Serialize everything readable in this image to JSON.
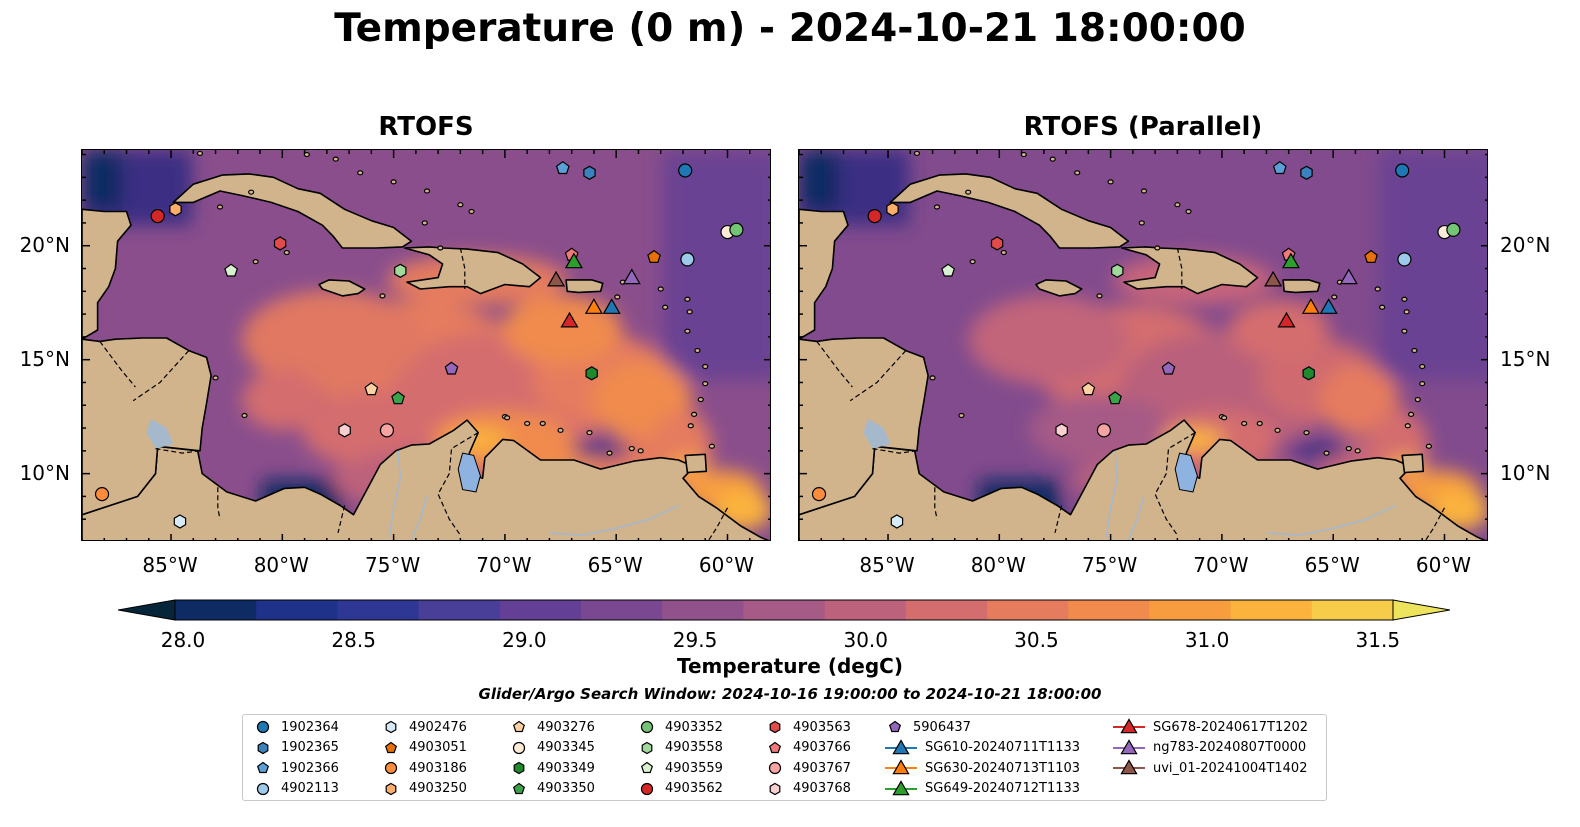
{
  "title": "Temperature (0 m) - 2024-10-21 18:00:00",
  "panels": [
    {
      "title": "RTOFS",
      "id": "left"
    },
    {
      "title": "RTOFS (Parallel)",
      "id": "right"
    }
  ],
  "axes": {
    "lon_ticks": [
      "85°W",
      "80°W",
      "75°W",
      "70°W",
      "65°W",
      "60°W"
    ],
    "lat_ticks": [
      "20°N",
      "15°N",
      "10°N"
    ],
    "lon_range": [
      -89,
      -58
    ],
    "lat_range": [
      7,
      24.2
    ]
  },
  "colorbar": {
    "label": "Temperature (degC)",
    "min": 28.0,
    "max": 31.5,
    "ticks": [
      "28.0",
      "28.5",
      "29.0",
      "29.5",
      "30.0",
      "30.5",
      "31.0",
      "31.5"
    ],
    "colors": [
      "#062538",
      "#0e2b63",
      "#1e3289",
      "#2f3794",
      "#4a3f98",
      "#633f96",
      "#7a4890",
      "#91528b",
      "#a65a86",
      "#bd627c",
      "#d46d6e",
      "#e57c5e",
      "#f08b4d",
      "#f79d40",
      "#fbb33d",
      "#f7cc4a",
      "#eee35d"
    ]
  },
  "search_window": "Glider/Argo Search Window: 2024-10-16 19:00:00 to 2024-10-21 18:00:00",
  "colors": {
    "land": "#d2b48c",
    "lake": "#8fb3e0",
    "river": "#a5b8cc",
    "ocean_base": "#8a4e8c",
    "warm": "#e9875a",
    "cool": "#3b2d82"
  },
  "legend": [
    {
      "label": "1902364",
      "marker": "circle",
      "color": "#1f77b4"
    },
    {
      "label": "1902365",
      "marker": "hexagon",
      "color": "#3a82bb"
    },
    {
      "label": "1902366",
      "marker": "pentagon",
      "color": "#5a9fd6"
    },
    {
      "label": "4902113",
      "marker": "circle",
      "color": "#9ecae9"
    },
    {
      "label": "4902476",
      "marker": "hexagon",
      "color": "#d6ebf7"
    },
    {
      "label": "4903051",
      "marker": "pentagon",
      "color": "#e6700a"
    },
    {
      "label": "4903186",
      "marker": "circle",
      "color": "#fd8d3c"
    },
    {
      "label": "4903250",
      "marker": "hexagon",
      "color": "#fdae6b"
    },
    {
      "label": "4903276",
      "marker": "pentagon",
      "color": "#fdd0a2"
    },
    {
      "label": "4903345",
      "marker": "circle",
      "color": "#feebd6"
    },
    {
      "label": "4903349",
      "marker": "hexagon",
      "color": "#1e8a2c"
    },
    {
      "label": "4903350",
      "marker": "pentagon",
      "color": "#3aa34a"
    },
    {
      "label": "4903352",
      "marker": "circle",
      "color": "#74c476"
    },
    {
      "label": "4903558",
      "marker": "hexagon",
      "color": "#a1d99b"
    },
    {
      "label": "4903559",
      "marker": "pentagon",
      "color": "#d8f2d1"
    },
    {
      "label": "4903562",
      "marker": "circle",
      "color": "#d62728"
    },
    {
      "label": "4903563",
      "marker": "hexagon",
      "color": "#e34a4a"
    },
    {
      "label": "4903766",
      "marker": "pentagon",
      "color": "#f07a7a"
    },
    {
      "label": "4903767",
      "marker": "circle",
      "color": "#f5a3a3"
    },
    {
      "label": "4903768",
      "marker": "hexagon",
      "color": "#fbd0d0"
    },
    {
      "label": "5906437",
      "marker": "pentagon",
      "color": "#9467bd"
    },
    {
      "label": "SG610-20240711T1133",
      "marker": "triangle-line",
      "color": "#1f77b4"
    },
    {
      "label": "SG630-20240713T1103",
      "marker": "triangle-line",
      "color": "#ff7f0e"
    },
    {
      "label": "SG649-20240712T1133",
      "marker": "triangle-line",
      "color": "#2ca02c"
    },
    {
      "label": "SG678-20240617T1202",
      "marker": "triangle-line",
      "color": "#d62728"
    },
    {
      "label": "ng783-20240807T0000",
      "marker": "triangle-line",
      "color": "#9467bd"
    },
    {
      "label": "uvi_01-20241004T1402",
      "marker": "triangle-line",
      "color": "#8c564b"
    }
  ],
  "points": [
    {
      "label": "1902364",
      "lon": -61.9,
      "lat": 23.3
    },
    {
      "label": "1902365",
      "lon": -66.2,
      "lat": 23.2
    },
    {
      "label": "1902366",
      "lon": -67.4,
      "lat": 23.4
    },
    {
      "label": "4902113",
      "lon": -61.8,
      "lat": 19.4
    },
    {
      "label": "4902476",
      "lon": -84.6,
      "lat": 7.9
    },
    {
      "label": "4903051",
      "lon": -63.3,
      "lat": 19.5
    },
    {
      "label": "4903186",
      "lon": -88.1,
      "lat": 9.1
    },
    {
      "label": "4903250",
      "lon": -84.8,
      "lat": 21.6
    },
    {
      "label": "4903276",
      "lon": -76.0,
      "lat": 13.7
    },
    {
      "label": "4903345",
      "lon": -60.0,
      "lat": 20.6
    },
    {
      "label": "4903349",
      "lon": -66.1,
      "lat": 14.4
    },
    {
      "label": "4903350",
      "lon": -74.8,
      "lat": 13.3
    },
    {
      "label": "4903352",
      "lon": -59.6,
      "lat": 20.7
    },
    {
      "label": "4903558",
      "lon": -74.7,
      "lat": 18.9
    },
    {
      "label": "4903559",
      "lon": -82.3,
      "lat": 18.9
    },
    {
      "label": "4903562",
      "lon": -85.6,
      "lat": 21.3
    },
    {
      "label": "4903563",
      "lon": -80.1,
      "lat": 20.1
    },
    {
      "label": "4903766",
      "lon": -67.0,
      "lat": 19.6
    },
    {
      "label": "4903767",
      "lon": -75.3,
      "lat": 11.9
    },
    {
      "label": "4903768",
      "lon": -77.2,
      "lat": 11.9
    },
    {
      "label": "5906437",
      "lon": -72.4,
      "lat": 14.6
    },
    {
      "label": "SG610-20240711T1133",
      "lon": -65.2,
      "lat": 17.3
    },
    {
      "label": "SG630-20240713T1103",
      "lon": -66.0,
      "lat": 17.3
    },
    {
      "label": "SG649-20240712T1133",
      "lon": -66.9,
      "lat": 19.3
    },
    {
      "label": "SG678-20240617T1202",
      "lon": -67.1,
      "lat": 16.7
    },
    {
      "label": "ng783-20240807T0000",
      "lon": -64.3,
      "lat": 18.6
    },
    {
      "label": "uvi_01-20241004T1402",
      "lon": -67.7,
      "lat": 18.5
    }
  ]
}
